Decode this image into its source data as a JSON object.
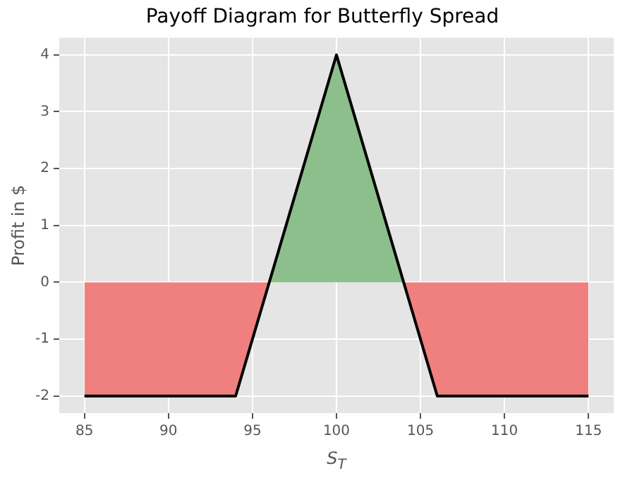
{
  "chart_data": {
    "type": "line",
    "title": "Payoff Diagram for Butterfly Spread",
    "xlabel": "S$_{T}$",
    "ylabel": "Profit in $",
    "series": [
      {
        "type": "area",
        "color": "#f08080",
        "x": [
          85,
          94,
          96
        ],
        "values": [
          -2,
          -2,
          0
        ]
      },
      {
        "type": "area",
        "color": "#f08080",
        "x": [
          104,
          106,
          115
        ],
        "values": [
          0,
          -2,
          -2
        ]
      },
      {
        "type": "area",
        "color": "#8cbf8c",
        "x": [
          96,
          100,
          104
        ],
        "values": [
          0,
          4,
          0
        ]
      },
      {
        "type": "line",
        "color": "#000000",
        "x": [
          85,
          94,
          100,
          106,
          115
        ],
        "values": [
          -2,
          -2,
          4,
          -2,
          -2
        ]
      }
    ],
    "xlim": [
      83.5,
      116.5
    ],
    "xticks": [
      85,
      90,
      95,
      100,
      105,
      110,
      115
    ],
    "ylim": [
      -2.3,
      4.3
    ],
    "yticks": [
      -2,
      -1,
      0,
      1,
      2,
      3,
      4
    ],
    "grid": true,
    "legend": false,
    "marker": "none",
    "line_style": "solid"
  }
}
